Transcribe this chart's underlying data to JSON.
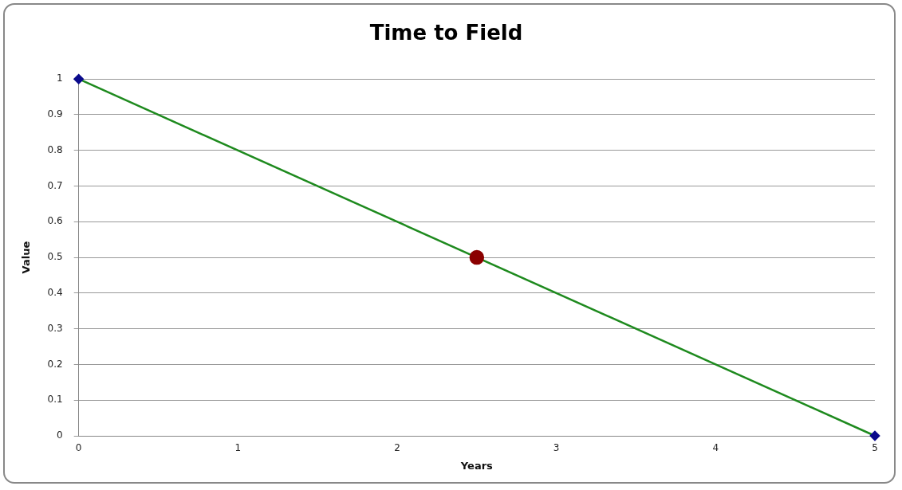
{
  "chart_data": {
    "type": "line",
    "title": "Time to Field",
    "xlabel": "Years",
    "ylabel": "Value",
    "xlim": [
      0,
      5
    ],
    "xticks": [
      0,
      1,
      2,
      3,
      4,
      5
    ],
    "ylim": [
      0,
      1
    ],
    "yticks": [
      0,
      0.1,
      0.2,
      0.3,
      0.4,
      0.5,
      0.6,
      0.7,
      0.8,
      0.9,
      1
    ],
    "grid": "y",
    "legend": false,
    "series": [
      {
        "color": "#1e8a1e",
        "x": [
          0,
          5
        ],
        "values": [
          1,
          0
        ],
        "marker": "none",
        "line_style": "solid"
      },
      {
        "type": "scatter",
        "color": "#0a0a8c",
        "x": [
          0,
          5
        ],
        "values": [
          1,
          0
        ],
        "marker": "diamond"
      },
      {
        "type": "scatter",
        "color": "#8b0000",
        "x": [
          2.5
        ],
        "values": [
          0.5
        ],
        "marker": "circle"
      }
    ]
  }
}
